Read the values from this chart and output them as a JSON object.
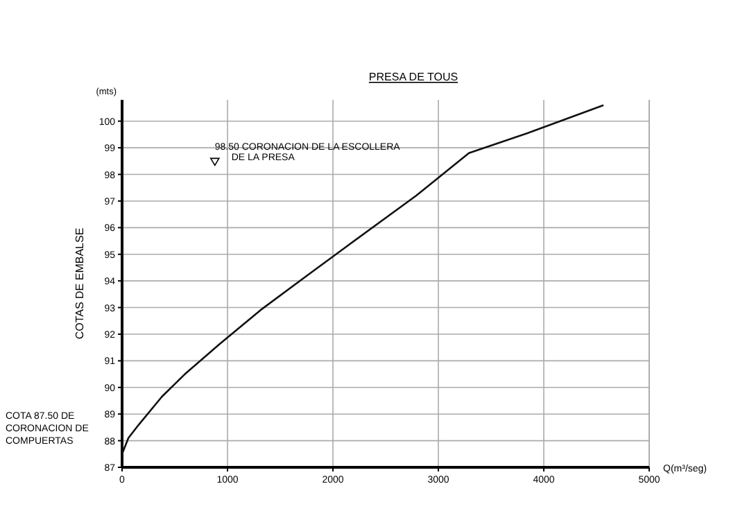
{
  "chart_data": {
    "type": "line",
    "title": "PRESA DE TOUS",
    "xlabel": "Q(m³/seg)",
    "ylabel": "COTAS DE EMBALSE",
    "annotations": [
      "(mts)",
      {
        "text": "98.50 CORONACION DE LA ESCOLLERA DE LA PRESA",
        "x": 880,
        "y": 98.5
      },
      "COTA 87.50 DE CORONACION DE COMPUERTAS"
    ],
    "x": [
      0,
      60,
      158,
      377,
      596,
      917,
      1312,
      1754,
      2132,
      2789,
      3290,
      3882,
      4566
    ],
    "series": [
      {
        "color": "#111111",
        "values": [
          87.5,
          88.1,
          88.6,
          89.65,
          90.5,
          91.6,
          92.9,
          94.2,
          95.3,
          97.2,
          98.8,
          99.6,
          100.6
        ]
      }
    ],
    "xlim": [
      0,
      5000
    ],
    "xticks": [
      0,
      1000,
      2000,
      3000,
      4000,
      5000
    ],
    "ylim": [
      87,
      100.8
    ],
    "yticks": [
      87,
      88,
      89,
      90,
      91,
      92,
      93,
      94,
      95,
      96,
      97,
      98,
      99,
      100
    ],
    "grid": true,
    "marker": "none",
    "line_style": "solid"
  }
}
